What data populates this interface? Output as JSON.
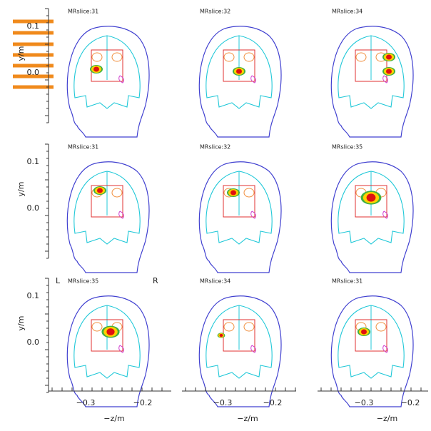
{
  "figure": {
    "y_axis_label": "y/m",
    "x_axis_label": "−z/m",
    "y_ticks": [
      "0.1",
      "0.0"
    ],
    "x_ticks": [
      "−0.3",
      "−0.2"
    ],
    "orientation": {
      "left": "L",
      "right": "R"
    },
    "panels": [
      {
        "label": "MRslice:31"
      },
      {
        "label": "MRslice:32"
      },
      {
        "label": "MRslice:34"
      },
      {
        "label": "MRslice:31"
      },
      {
        "label": "MRslice:32"
      },
      {
        "label": "MRslice:35"
      },
      {
        "label": "MRslice:35"
      },
      {
        "label": "MRslice:34"
      },
      {
        "label": "MRslice:31"
      }
    ]
  }
}
